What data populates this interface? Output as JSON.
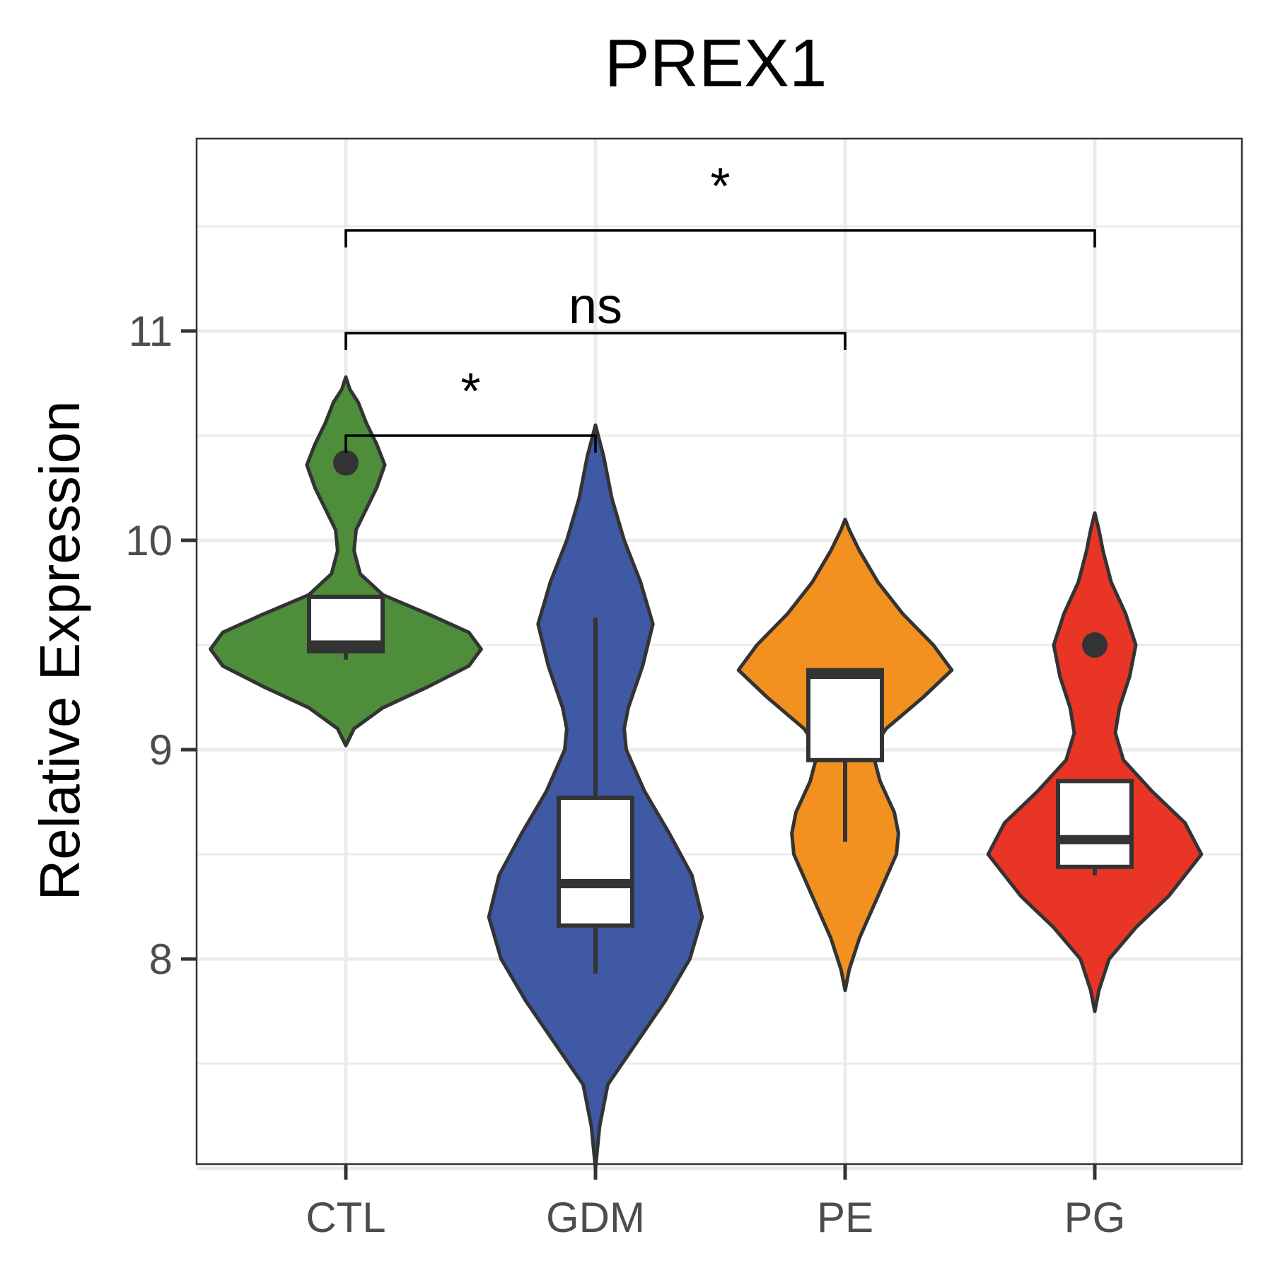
{
  "chart_data": {
    "type": "violin",
    "title": "PREX1",
    "xlabel": "",
    "ylabel": "Relative Expression",
    "ylim": [
      7.0,
      11.9
    ],
    "yticks": [
      8,
      9,
      10,
      11
    ],
    "ytick_labels": [
      "8",
      "9",
      "10",
      "11"
    ],
    "grid": true,
    "categories": [
      "CTL",
      "GDM",
      "PE",
      "PG"
    ],
    "colors": {
      "CTL": "#4e8d3a",
      "GDM": "#3f59a5",
      "PE": "#f2911f",
      "PG": "#e83526",
      "outline": "#333333"
    },
    "groups": [
      {
        "name": "CTL",
        "violin_range": [
          9.02,
          10.78
        ],
        "violin_profile": [
          [
            9.02,
            0.0
          ],
          [
            9.1,
            0.04
          ],
          [
            9.2,
            0.18
          ],
          [
            9.3,
            0.4
          ],
          [
            9.4,
            0.6
          ],
          [
            9.48,
            0.66
          ],
          [
            9.56,
            0.6
          ],
          [
            9.64,
            0.42
          ],
          [
            9.74,
            0.18
          ],
          [
            9.84,
            0.07
          ],
          [
            9.95,
            0.04
          ],
          [
            10.05,
            0.05
          ],
          [
            10.15,
            0.1
          ],
          [
            10.25,
            0.15
          ],
          [
            10.36,
            0.19
          ],
          [
            10.46,
            0.15
          ],
          [
            10.56,
            0.1
          ],
          [
            10.66,
            0.06
          ],
          [
            10.72,
            0.02
          ],
          [
            10.78,
            0.0
          ]
        ],
        "box": {
          "q1": 9.47,
          "median": 9.5,
          "q3": 9.73,
          "whisker_low": 9.43,
          "whisker_high": 9.73
        },
        "outliers": [
          10.37
        ]
      },
      {
        "name": "GDM",
        "violin_range": [
          7.0,
          10.55
        ],
        "violin_profile": [
          [
            7.0,
            0.0
          ],
          [
            7.2,
            0.02
          ],
          [
            7.4,
            0.06
          ],
          [
            7.6,
            0.2
          ],
          [
            7.8,
            0.34
          ],
          [
            8.0,
            0.46
          ],
          [
            8.2,
            0.52
          ],
          [
            8.4,
            0.47
          ],
          [
            8.6,
            0.36
          ],
          [
            8.8,
            0.24
          ],
          [
            9.0,
            0.15
          ],
          [
            9.1,
            0.14
          ],
          [
            9.2,
            0.16
          ],
          [
            9.4,
            0.23
          ],
          [
            9.6,
            0.28
          ],
          [
            9.8,
            0.22
          ],
          [
            10.0,
            0.14
          ],
          [
            10.2,
            0.08
          ],
          [
            10.4,
            0.04
          ],
          [
            10.55,
            0.0
          ]
        ],
        "box": {
          "q1": 8.16,
          "median": 8.36,
          "q3": 8.77,
          "whisker_low": 7.93,
          "whisker_high": 9.63
        },
        "outliers": []
      },
      {
        "name": "PE",
        "violin_range": [
          7.85,
          10.1
        ],
        "violin_profile": [
          [
            7.85,
            0.0
          ],
          [
            7.95,
            0.02
          ],
          [
            8.1,
            0.07
          ],
          [
            8.3,
            0.16
          ],
          [
            8.5,
            0.25
          ],
          [
            8.6,
            0.26
          ],
          [
            8.7,
            0.24
          ],
          [
            8.85,
            0.17
          ],
          [
            9.0,
            0.13
          ],
          [
            9.1,
            0.2
          ],
          [
            9.25,
            0.38
          ],
          [
            9.38,
            0.52
          ],
          [
            9.5,
            0.43
          ],
          [
            9.65,
            0.28
          ],
          [
            9.8,
            0.16
          ],
          [
            9.95,
            0.07
          ],
          [
            10.05,
            0.02
          ],
          [
            10.1,
            0.0
          ]
        ],
        "box": {
          "q1": 8.95,
          "median": 9.36,
          "q3": 9.38,
          "whisker_low": 8.56,
          "whisker_high": 9.38
        },
        "outliers": []
      },
      {
        "name": "PG",
        "violin_range": [
          7.75,
          10.13
        ],
        "violin_profile": [
          [
            7.75,
            0.0
          ],
          [
            7.85,
            0.02
          ],
          [
            8.0,
            0.07
          ],
          [
            8.15,
            0.2
          ],
          [
            8.3,
            0.36
          ],
          [
            8.5,
            0.52
          ],
          [
            8.65,
            0.44
          ],
          [
            8.8,
            0.28
          ],
          [
            8.95,
            0.14
          ],
          [
            9.08,
            0.1
          ],
          [
            9.2,
            0.12
          ],
          [
            9.35,
            0.17
          ],
          [
            9.5,
            0.2
          ],
          [
            9.65,
            0.15
          ],
          [
            9.8,
            0.08
          ],
          [
            9.95,
            0.04
          ],
          [
            10.05,
            0.02
          ],
          [
            10.13,
            0.0
          ]
        ],
        "box": {
          "q1": 8.44,
          "median": 8.57,
          "q3": 8.85,
          "whisker_low": 8.4,
          "whisker_high": 8.85
        },
        "outliers": [
          9.5
        ]
      }
    ],
    "comparisons": [
      {
        "from": "CTL",
        "to": "GDM",
        "y": 10.5,
        "label": "*"
      },
      {
        "from": "CTL",
        "to": "PE",
        "y": 10.99,
        "label": "ns"
      },
      {
        "from": "CTL",
        "to": "PG",
        "y": 11.48,
        "label": "*"
      }
    ]
  }
}
